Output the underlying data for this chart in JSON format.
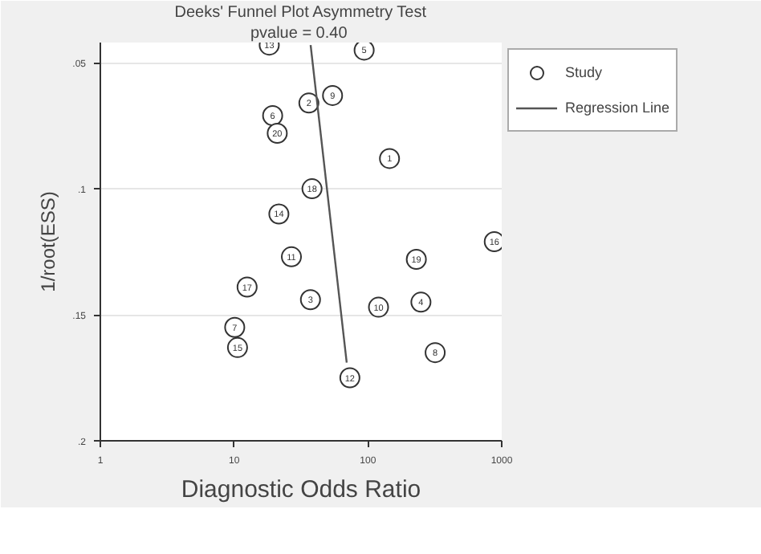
{
  "chart_data": {
    "type": "scatter",
    "title": "Deeks' Funnel Plot Asymmetry Test",
    "subtitle": "pvalue =  0.40",
    "xlabel": "Diagnostic Odds Ratio",
    "ylabel": "1/root(ESS)",
    "log": "x",
    "xlim": [
      1,
      1000
    ],
    "xticks": [
      1,
      10,
      100,
      1000
    ],
    "ylim": [
      0.2,
      0.042
    ],
    "yticks": [
      {
        "value": 0.05,
        "label": ".05"
      },
      {
        "value": 0.1,
        "label": ".1"
      },
      {
        "value": 0.15,
        "label": ".15"
      },
      {
        "value": 0.2,
        "label": ".2"
      }
    ],
    "grid": "y",
    "legend": "top right",
    "series": [
      {
        "name": "Study",
        "type": "scatter",
        "marker": "circle",
        "color": "#333333",
        "x": [
          18.3,
          93.7,
          54.4,
          36.2,
          19.4,
          21.0,
          38.2,
          21.6,
          145,
          26.8,
          12.5,
          37.2,
          10.1,
          10.6,
          73.3,
          880,
          230,
          249,
          120,
          318
        ],
        "values": [
          0.043,
          0.045,
          0.063,
          0.066,
          0.071,
          0.078,
          0.1,
          0.11,
          0.088,
          0.127,
          0.139,
          0.144,
          0.155,
          0.163,
          0.175,
          0.121,
          0.128,
          0.145,
          0.147,
          0.165
        ]
      },
      {
        "name": "Regression Line",
        "type": "line",
        "color": "#555555",
        "x": [
          37.3,
          69.4
        ],
        "values": [
          0.043,
          0.169
        ]
      }
    ],
    "annotations": [
      {
        "text": "13",
        "x": 18.3,
        "y": 0.043
      },
      {
        "text": "5",
        "x": 93.7,
        "y": 0.045
      },
      {
        "text": "9",
        "x": 54.4,
        "y": 0.063
      },
      {
        "text": "2",
        "x": 36.2,
        "y": 0.066
      },
      {
        "text": "6",
        "x": 19.4,
        "y": 0.071
      },
      {
        "text": "20",
        "x": 21.0,
        "y": 0.078
      },
      {
        "text": "18",
        "x": 38.2,
        "y": 0.1
      },
      {
        "text": "14",
        "x": 21.6,
        "y": 0.11
      },
      {
        "text": "1",
        "x": 145,
        "y": 0.088
      },
      {
        "text": "11",
        "x": 26.8,
        "y": 0.127
      },
      {
        "text": "17",
        "x": 12.5,
        "y": 0.139
      },
      {
        "text": "3",
        "x": 37.2,
        "y": 0.144
      },
      {
        "text": "7",
        "x": 10.1,
        "y": 0.155
      },
      {
        "text": "15",
        "x": 10.6,
        "y": 0.163
      },
      {
        "text": "12",
        "x": 73.3,
        "y": 0.175
      },
      {
        "text": "16",
        "x": 880,
        "y": 0.121
      },
      {
        "text": "19",
        "x": 230,
        "y": 0.128
      },
      {
        "text": "4",
        "x": 249,
        "y": 0.145
      },
      {
        "text": "10",
        "x": 120,
        "y": 0.147
      },
      {
        "text": "8",
        "x": 318,
        "y": 0.165
      }
    ]
  }
}
